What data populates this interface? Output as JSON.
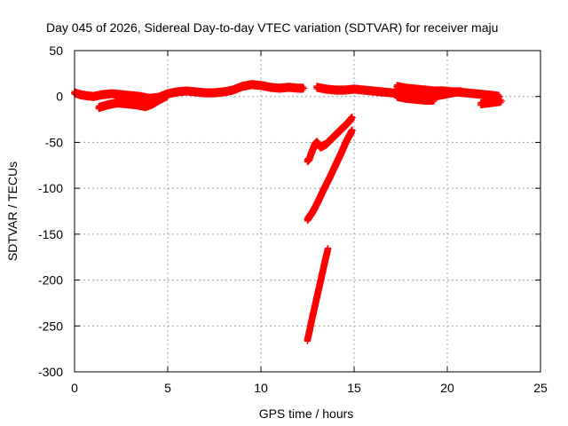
{
  "chart_data": {
    "type": "scatter",
    "title": "Day 045 of 2026, Sidereal Day-to-day VTEC variation (SDTVAR) for receiver maju",
    "xlabel": "GPS time / hours",
    "ylabel": "SDTVAR / TECUs",
    "xlim": [
      0,
      25
    ],
    "ylim": [
      -300,
      50
    ],
    "xticks": [
      0,
      5,
      10,
      15,
      20,
      25
    ],
    "yticks": [
      -300,
      -250,
      -200,
      -150,
      -100,
      -50,
      0,
      50
    ],
    "grid": true,
    "marker": "+",
    "color": "#ff0000",
    "series": [
      {
        "x": [
          0.0,
          0.3,
          0.6,
          1.0,
          1.5,
          2.0,
          2.5,
          3.0,
          3.5,
          4.0,
          4.5,
          5.0,
          5.5,
          6.0,
          6.5,
          7.0,
          7.5,
          8.0,
          8.5,
          9.0,
          9.5,
          10.0,
          10.5,
          11.0,
          11.5,
          12.0,
          12.3
        ],
        "y": [
          4,
          2,
          1,
          0,
          2,
          3,
          2,
          1,
          0,
          -2,
          -1,
          3,
          5,
          6,
          5,
          4,
          4,
          5,
          7,
          11,
          13,
          12,
          10,
          9,
          10,
          9,
          9
        ]
      },
      {
        "x": [
          1.3,
          1.8,
          2.3,
          2.8,
          3.3,
          3.8,
          4.2,
          4.6,
          5.0
        ],
        "y": [
          -12,
          -9,
          -7,
          -8,
          -9,
          -11,
          -8,
          -3,
          1
        ]
      },
      {
        "x": [
          13.0,
          13.5,
          14.0,
          14.5,
          15.0,
          15.5,
          16.0,
          16.5,
          17.0,
          17.5,
          18.0,
          18.5,
          19.0,
          19.5,
          20.0,
          20.5,
          21.0,
          21.5,
          22.0,
          22.5,
          22.8
        ],
        "y": [
          10,
          8,
          7,
          7,
          8,
          7,
          6,
          5,
          4,
          3,
          2,
          1,
          0,
          1,
          3,
          5,
          4,
          3,
          2,
          1,
          0
        ]
      },
      {
        "x": [
          17.3,
          17.8,
          18.3,
          18.8,
          19.3,
          19.8,
          20.3,
          20.8
        ],
        "y": [
          11,
          9,
          8,
          7,
          6,
          6,
          5,
          5
        ]
      },
      {
        "x": [
          17.3,
          17.8,
          18.3,
          18.8,
          19.3
        ],
        "y": [
          0,
          -2,
          -3,
          -4,
          -4
        ]
      },
      {
        "x": [
          21.8,
          22.2,
          22.6,
          22.9
        ],
        "y": [
          -8,
          -7,
          -6,
          -5
        ]
      },
      {
        "x": [
          12.5,
          12.6,
          12.7,
          12.8,
          12.9,
          13.0,
          13.2,
          13.5,
          13.8,
          14.1,
          14.4,
          14.7,
          14.9
        ],
        "y": [
          -70,
          -68,
          -62,
          -57,
          -52,
          -50,
          -55,
          -52,
          -46,
          -40,
          -34,
          -28,
          -23
        ]
      },
      {
        "x": [
          12.5,
          12.8,
          13.1,
          13.4,
          13.7,
          14.0,
          14.3,
          14.6,
          14.9
        ],
        "y": [
          -134,
          -125,
          -113,
          -100,
          -88,
          -75,
          -62,
          -48,
          -37
        ]
      },
      {
        "x": [
          12.5,
          12.6,
          12.7,
          12.8,
          12.9,
          13.0,
          13.1,
          13.2,
          13.3,
          13.4,
          13.5,
          13.6
        ],
        "y": [
          -265,
          -256,
          -246,
          -237,
          -228,
          -219,
          -210,
          -201,
          -192,
          -183,
          -174,
          -166
        ]
      }
    ]
  }
}
